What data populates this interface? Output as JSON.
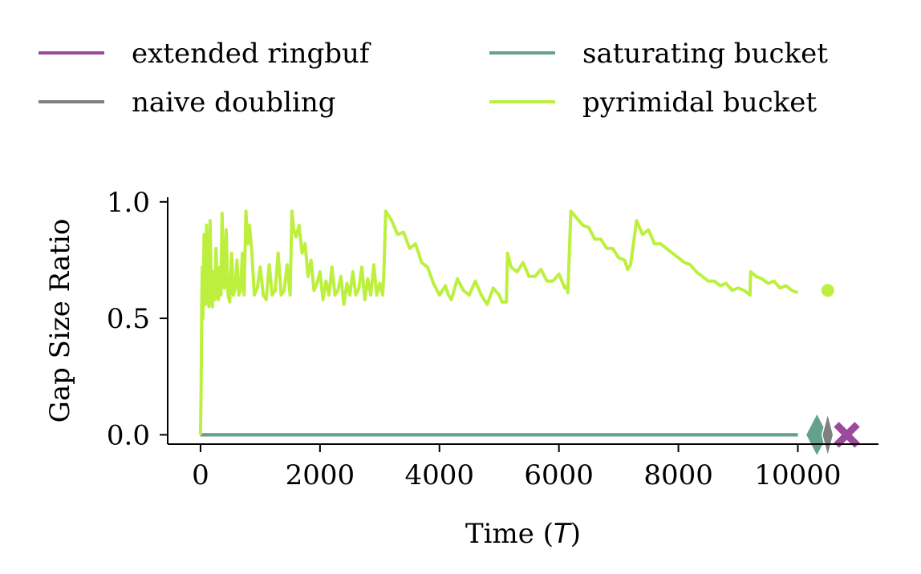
{
  "chart_data": {
    "type": "line",
    "xlabel": "Time (",
    "xlabel_var": "T",
    "xlabel_close": ")",
    "ylabel": "Gap Size Ratio",
    "xlim": [
      -550,
      11350
    ],
    "ylim": [
      -0.04,
      1.02
    ],
    "x_ticks": [
      0,
      2000,
      4000,
      6000,
      8000,
      10000
    ],
    "y_ticks": [
      0.0,
      0.5,
      1.0
    ],
    "x_tick_labels": [
      "0",
      "2000",
      "4000",
      "6000",
      "8000",
      "10000"
    ],
    "y_tick_labels": [
      "0.0",
      "0.5",
      "1.0"
    ],
    "legend": {
      "placement": "top",
      "columns": 2
    },
    "series": [
      {
        "name": "extended ringbuf",
        "color": "#9b4a9b",
        "x": [
          0,
          10000
        ],
        "y": [
          0.0,
          0.0
        ],
        "end_marker": {
          "shape": "x",
          "x": 10820,
          "y": 0.0
        }
      },
      {
        "name": "saturating bucket",
        "color": "#64a38a",
        "x": [
          0,
          10000
        ],
        "y": [
          0.0,
          0.0
        ],
        "end_marker": {
          "shape": "diamond",
          "x": 10320,
          "y": 0.0
        }
      },
      {
        "name": "naive doubling",
        "color": "#808080",
        "x": [
          0,
          10000
        ],
        "y": [
          0.0,
          0.0
        ],
        "end_marker": {
          "shape": "thin-diamond",
          "x": 10500,
          "y": 0.0
        }
      },
      {
        "name": "pyrimidal bucket",
        "color": "#bdf03e",
        "x": [
          0,
          10,
          20,
          30,
          40,
          60,
          80,
          100,
          120,
          140,
          160,
          180,
          200,
          220,
          240,
          260,
          280,
          300,
          320,
          340,
          360,
          380,
          400,
          430,
          460,
          490,
          520,
          550,
          580,
          610,
          640,
          670,
          700,
          730,
          760,
          790,
          820,
          860,
          900,
          950,
          1000,
          1050,
          1100,
          1150,
          1200,
          1250,
          1300,
          1350,
          1400,
          1450,
          1500,
          1530,
          1560,
          1600,
          1650,
          1700,
          1750,
          1800,
          1850,
          1900,
          1950,
          2000,
          2050,
          2100,
          2150,
          2200,
          2250,
          2300,
          2350,
          2400,
          2450,
          2500,
          2550,
          2600,
          2650,
          2700,
          2750,
          2800,
          2850,
          2900,
          2950,
          3000,
          3050,
          3070,
          3100,
          3200,
          3300,
          3400,
          3500,
          3600,
          3700,
          3800,
          3900,
          4000,
          4100,
          4150,
          4200,
          4300,
          4400,
          4500,
          4600,
          4700,
          4800,
          4900,
          5000,
          5050,
          5100,
          5120,
          5140,
          5200,
          5300,
          5400,
          5500,
          5600,
          5700,
          5800,
          5900,
          6000,
          6100,
          6140,
          6150,
          6200,
          6300,
          6400,
          6500,
          6600,
          6700,
          6800,
          6900,
          7000,
          7100,
          7150,
          7200,
          7300,
          7400,
          7500,
          7600,
          7700,
          7800,
          7900,
          8000,
          8100,
          8200,
          8300,
          8400,
          8500,
          8600,
          8700,
          8800,
          8900,
          9000,
          9100,
          9200,
          9210,
          9300,
          9400,
          9500,
          9600,
          9700,
          9800,
          9900,
          10000
        ],
        "y": [
          0.0,
          0.2,
          0.55,
          0.72,
          0.5,
          0.86,
          0.56,
          0.9,
          0.6,
          0.55,
          0.92,
          0.6,
          0.55,
          0.7,
          0.58,
          0.8,
          0.6,
          0.58,
          0.72,
          0.6,
          0.95,
          0.75,
          0.63,
          0.88,
          0.6,
          0.57,
          0.78,
          0.6,
          0.63,
          0.75,
          0.6,
          0.62,
          0.78,
          0.6,
          0.96,
          0.82,
          0.9,
          0.78,
          0.6,
          0.63,
          0.72,
          0.6,
          0.58,
          0.73,
          0.6,
          0.62,
          0.78,
          0.6,
          0.62,
          0.73,
          0.6,
          0.96,
          0.88,
          0.85,
          0.9,
          0.78,
          0.82,
          0.68,
          0.75,
          0.62,
          0.65,
          0.7,
          0.58,
          0.66,
          0.6,
          0.72,
          0.6,
          0.62,
          0.68,
          0.56,
          0.65,
          0.6,
          0.7,
          0.6,
          0.63,
          0.72,
          0.58,
          0.67,
          0.6,
          0.73,
          0.6,
          0.65,
          0.6,
          0.7,
          0.96,
          0.92,
          0.86,
          0.87,
          0.8,
          0.82,
          0.74,
          0.72,
          0.65,
          0.6,
          0.64,
          0.6,
          0.58,
          0.67,
          0.62,
          0.6,
          0.66,
          0.6,
          0.56,
          0.63,
          0.6,
          0.57,
          0.57,
          0.57,
          0.78,
          0.72,
          0.7,
          0.74,
          0.68,
          0.68,
          0.71,
          0.66,
          0.66,
          0.69,
          0.63,
          0.64,
          0.61,
          0.96,
          0.93,
          0.9,
          0.89,
          0.84,
          0.84,
          0.8,
          0.8,
          0.76,
          0.75,
          0.71,
          0.73,
          0.92,
          0.86,
          0.88,
          0.82,
          0.82,
          0.8,
          0.78,
          0.76,
          0.74,
          0.73,
          0.7,
          0.68,
          0.66,
          0.66,
          0.64,
          0.65,
          0.62,
          0.63,
          0.62,
          0.6,
          0.7,
          0.68,
          0.67,
          0.65,
          0.66,
          0.63,
          0.64,
          0.62,
          0.61
        ],
        "end_marker": {
          "shape": "dot",
          "x": 10500,
          "y": 0.62
        }
      }
    ]
  }
}
